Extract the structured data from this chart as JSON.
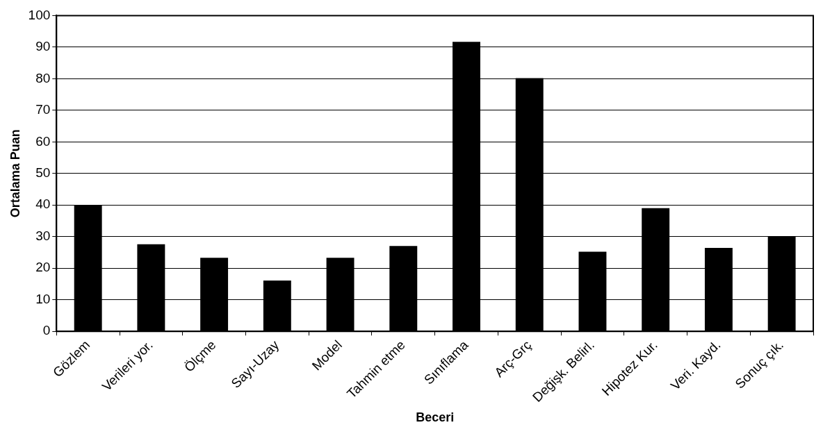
{
  "chart_data": {
    "type": "bar",
    "xlabel": "Beceri",
    "ylabel": "Ortalama Puan",
    "categories": [
      "Gözlem",
      "Verileri yor.",
      "Ölçme",
      "Sayı-Uzay",
      "Model",
      "Tahmin etme",
      "Sınıflama",
      "Arç-Grç",
      "Değişk. Belirl.",
      "Hipotez Kur.",
      "Veri. Kayd.",
      "Sonuç çık."
    ],
    "values": [
      40,
      27.6,
      23.3,
      16.1,
      23.3,
      27,
      91.7,
      80.2,
      25.2,
      39,
      26.4,
      30.1
    ],
    "color": "#000000",
    "ylim": [
      0,
      100
    ],
    "yticks": [
      0,
      10,
      20,
      30,
      40,
      50,
      60,
      70,
      80,
      90,
      100
    ],
    "grid": "y",
    "legend": false
  }
}
